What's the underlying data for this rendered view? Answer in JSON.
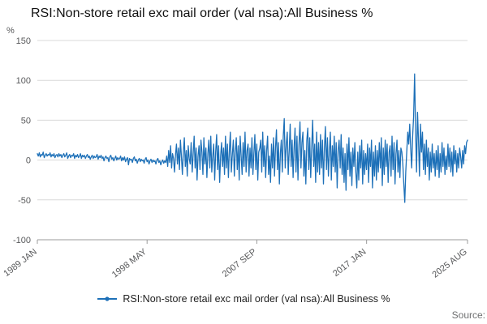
{
  "title": "RSI:Non-store retail exc mail order (val nsa):All Business %",
  "legend": {
    "label": "RSI:Non-store retail exc mail order (val nsa):All Business %"
  },
  "source_label": "Source:",
  "chart_data": {
    "type": "line",
    "title": "RSI:Non-store retail exc mail order (val nsa):All Business %",
    "xlabel": "",
    "ylabel": "%",
    "ylim": [
      -100,
      150
    ],
    "yticks": [
      150,
      100,
      50,
      0,
      -50,
      -100
    ],
    "x_start": "1989 JAN",
    "x_end": "2025 AUG",
    "frequency": "monthly",
    "grid": "horizontal",
    "legend_position": "bottom",
    "line_color": "#1d70b8",
    "axis_color": "#9b9b9b",
    "grid_color": "#d9d9d9",
    "tick_text_color": "#58595b",
    "xticks": [
      {
        "label": "1989 JAN",
        "index": 0
      },
      {
        "label": "1998 MAY",
        "index": 112
      },
      {
        "label": "2007 SEP",
        "index": 224
      },
      {
        "label": "2017 JAN",
        "index": 336
      },
      {
        "label": "2025 AUG",
        "index": 439
      }
    ],
    "values": [
      8,
      5,
      9,
      4,
      7,
      6,
      10,
      3,
      6,
      8,
      5,
      7,
      6,
      9,
      4,
      7,
      5,
      8,
      3,
      6,
      7,
      4,
      8,
      5,
      7,
      3,
      6,
      8,
      4,
      6,
      9,
      2,
      5,
      7,
      3,
      6,
      5,
      8,
      2,
      6,
      4,
      7,
      3,
      5,
      8,
      2,
      6,
      4,
      6,
      2,
      5,
      7,
      3,
      5,
      1,
      4,
      6,
      2,
      5,
      3,
      4,
      7,
      1,
      5,
      3,
      6,
      2,
      4,
      -1,
      3,
      5,
      2,
      3,
      -2,
      4,
      6,
      1,
      3,
      -1,
      2,
      5,
      0,
      3,
      1,
      2,
      5,
      -1,
      3,
      0,
      4,
      -2,
      1,
      3,
      -6,
      2,
      0,
      1,
      -3,
      2,
      4,
      -1,
      1,
      -4,
      0,
      2,
      -2,
      1,
      -1,
      0,
      -4,
      1,
      3,
      -2,
      0,
      -5,
      -1,
      1,
      -3,
      0,
      -2,
      -1,
      -5,
      0,
      2,
      -3,
      -1,
      -6,
      -2,
      0,
      -4,
      -1,
      -3,
      5,
      -8,
      12,
      -3,
      18,
      -10,
      8,
      2,
      -15,
      6,
      20,
      -5,
      15,
      -12,
      25,
      5,
      -18,
      10,
      28,
      -8,
      12,
      -20,
      18,
      2,
      -5,
      22,
      -15,
      8,
      30,
      -10,
      15,
      -25,
      5,
      18,
      -12,
      25,
      10,
      -18,
      28,
      -5,
      15,
      -22,
      8,
      25,
      -10,
      30,
      -15,
      5,
      20,
      -25,
      10,
      32,
      -12,
      18,
      -28,
      5,
      22,
      -8,
      15,
      -18,
      30,
      -10,
      20,
      -22,
      12,
      35,
      -15,
      8,
      25,
      -20,
      10,
      28,
      -12,
      18,
      -25,
      30,
      5,
      -18,
      22,
      -8,
      35,
      -15,
      12,
      20,
      -20,
      15,
      -10,
      28,
      -18,
      8,
      32,
      -12,
      20,
      -25,
      10,
      15,
      25,
      -15,
      35,
      -8,
      18,
      -22,
      12,
      30,
      -18,
      5,
      -28,
      20,
      -10,
      28,
      -20,
      15,
      38,
      -12,
      22,
      -30,
      8,
      25,
      -15,
      30,
      52,
      -10,
      20,
      35,
      -18,
      12,
      45,
      -8,
      25,
      -22,
      15,
      40,
      -15,
      30,
      -25,
      18,
      48,
      -10,
      22,
      35,
      -20,
      12,
      -30,
      25,
      40,
      -12,
      28,
      -22,
      15,
      50,
      -8,
      20,
      -28,
      35,
      -15,
      22,
      -18,
      32,
      -10,
      25,
      -30,
      15,
      42,
      -12,
      28,
      -20,
      10,
      35,
      -25,
      18,
      -8,
      30,
      -15,
      22,
      -35,
      12,
      25,
      -10,
      32,
      -18,
      15,
      -28,
      8,
      -38,
      20,
      -12,
      28,
      -20,
      10,
      -32,
      15,
      -8,
      22,
      -15,
      -35,
      10,
      -25,
      18,
      -10,
      25,
      -30,
      12,
      -18,
      8,
      -12,
      20,
      -28,
      15,
      -8,
      25,
      -35,
      10,
      -20,
      18,
      -25,
      12,
      -15,
      22,
      -10,
      28,
      -32,
      15,
      -18,
      25,
      -8,
      20,
      -28,
      10,
      18,
      -20,
      30,
      -12,
      22,
      -30,
      8,
      25,
      -15,
      12,
      -22,
      15,
      10,
      -5,
      -30,
      -53,
      -15,
      10,
      35,
      20,
      45,
      15,
      -10,
      30,
      55,
      108,
      40,
      -15,
      60,
      25,
      -20,
      45,
      10,
      35,
      -12,
      20,
      -18,
      25,
      -8,
      15,
      -25,
      10,
      -15,
      20,
      -10,
      8,
      -20,
      12,
      -12,
      18,
      -22,
      8,
      -15,
      22,
      -8,
      15,
      -18,
      5,
      -12,
      20,
      -8,
      15,
      -15,
      10,
      -20,
      18,
      -5,
      12,
      -15,
      8,
      -10,
      15,
      5,
      -10,
      12,
      -5,
      18,
      8,
      22,
      25
    ]
  }
}
